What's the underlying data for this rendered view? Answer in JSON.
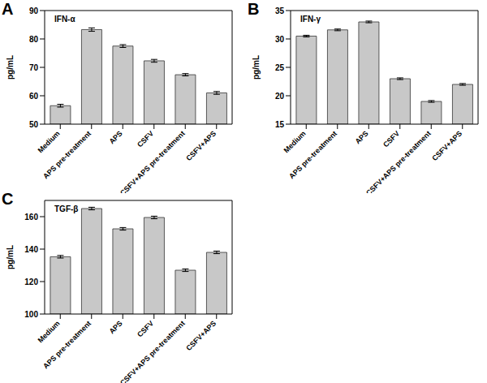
{
  "chart_data": [
    {
      "type": "bar",
      "annotation": "A",
      "title": "IFN-α",
      "ylabel": "pg/mL",
      "categories": [
        "Medium",
        "APS pre-treatment",
        "APS",
        "CSFV",
        "CSFV+APS pre-treatment",
        "CSFV+APS"
      ],
      "values": [
        56.5,
        83.3,
        77.5,
        72.3,
        67.4,
        61.0
      ],
      "errors": [
        0.5,
        0.6,
        0.5,
        0.5,
        0.4,
        0.5
      ],
      "color": "#c8c8c8",
      "ylim": [
        50,
        90
      ],
      "yticks": [
        50,
        60,
        70,
        80,
        90
      ],
      "grid": false
    },
    {
      "type": "bar",
      "annotation": "B",
      "title": "IFN-γ",
      "ylabel": "pg/mL",
      "categories": [
        "Medium",
        "APS pre-treatment",
        "APS",
        "CSFV",
        "CSFV+APS pre-treatment",
        "CSFV+APS"
      ],
      "values": [
        30.5,
        31.6,
        33.0,
        23.0,
        19.0,
        22.0
      ],
      "errors": [
        0.15,
        0.15,
        0.15,
        0.15,
        0.15,
        0.15
      ],
      "color": "#c8c8c8",
      "ylim": [
        15,
        35
      ],
      "yticks": [
        15,
        20,
        25,
        30,
        35
      ],
      "grid": false
    },
    {
      "type": "bar",
      "annotation": "C",
      "title": "TGF-β",
      "ylabel": "pg/mL",
      "categories": [
        "Medium",
        "APS pre-treatment",
        "APS",
        "CSFV",
        "CSFV+APS pre-treatment",
        "CSFV+APS"
      ],
      "values": [
        135.3,
        165.0,
        152.5,
        159.5,
        127.0,
        138.0
      ],
      "errors": [
        0.8,
        0.8,
        0.8,
        0.8,
        0.8,
        0.8
      ],
      "color": "#c8c8c8",
      "ylim": [
        100,
        170
      ],
      "yticks": [
        100,
        120,
        140,
        160
      ],
      "grid": false
    }
  ]
}
